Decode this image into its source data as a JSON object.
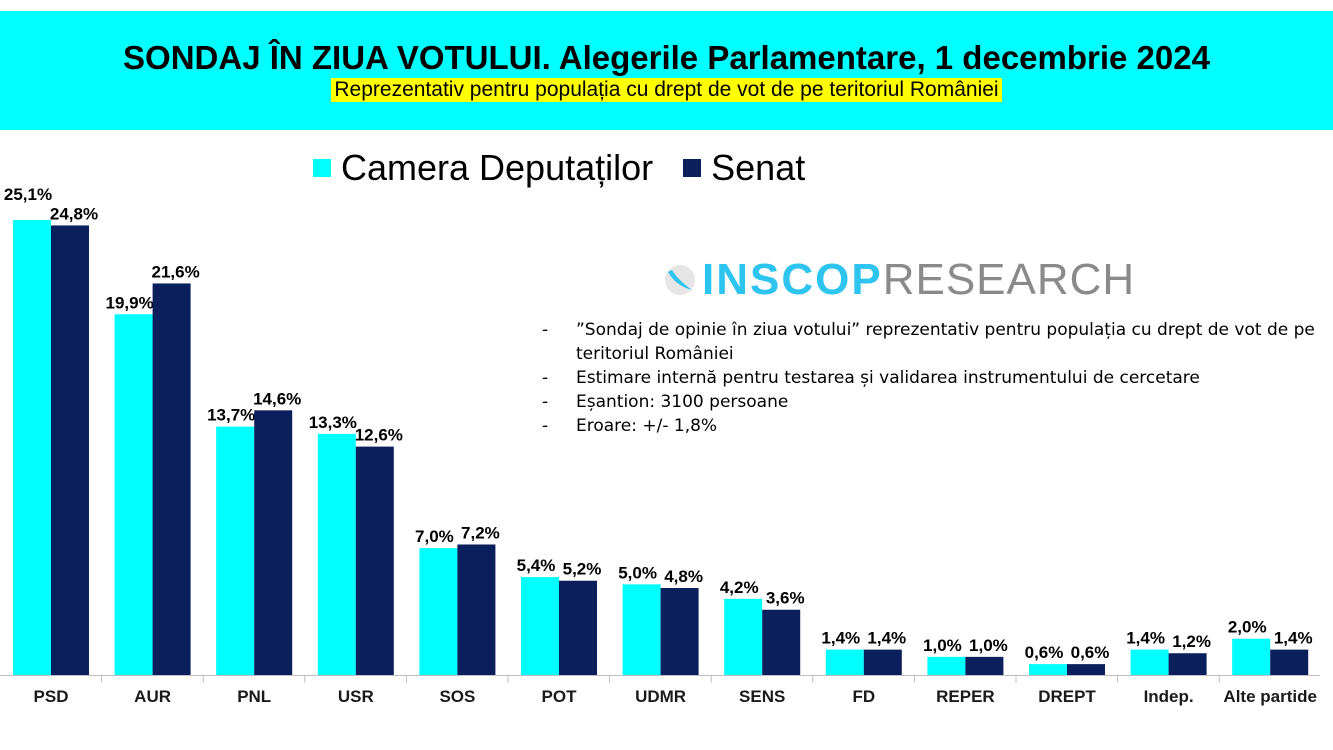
{
  "header": {
    "title": "SONDAJ ÎN ZIUA VOTULUI. Alegerile Parlamentare, 1 decembrie 2024",
    "subtitle": "Reprezentativ pentru populația cu drept de vot de pe teritoriul României"
  },
  "logo": {
    "strong": "INSCOP",
    "light": "RESEARCH",
    "icon": "swoosh-icon"
  },
  "notes": [
    "”Sondaj de opinie în ziua votului” reprezentativ pentru populația cu drept de vot de pe teritoriul României",
    "Estimare internă pentru testarea și validarea instrumentului de cercetare",
    "Eșantion: 3100 persoane",
    "Eroare: +/- 1,8%"
  ],
  "colors": {
    "camera": "#00ffff",
    "senat": "#0a1f5c",
    "header_bg": "#00ffff",
    "highlight": "#ffff00"
  },
  "chart_data": {
    "type": "bar",
    "title": "",
    "xlabel": "",
    "ylabel": "",
    "ylim": [
      0,
      26
    ],
    "grid": false,
    "legend": "top",
    "categories": [
      "PSD",
      "AUR",
      "PNL",
      "USR",
      "SOS",
      "POT",
      "UDMR",
      "SENS",
      "FD",
      "REPER",
      "DREPT",
      "Indep.",
      "Alte partide"
    ],
    "series": [
      {
        "name": "Camera Deputaților",
        "values": [
          25.1,
          19.9,
          13.7,
          13.3,
          7.0,
          5.4,
          5.0,
          4.2,
          1.4,
          1.0,
          0.6,
          1.4,
          2.0
        ],
        "labels": [
          "25,1%",
          "19,9%",
          "13,7%",
          "13,3%",
          "7,0%",
          "5,4%",
          "5,0%",
          "4,2%",
          "1,4%",
          "1,0%",
          "0,6%",
          "1,4%",
          "2,0%"
        ]
      },
      {
        "name": "Senat",
        "values": [
          24.8,
          21.6,
          14.6,
          12.6,
          7.2,
          5.2,
          4.8,
          3.6,
          1.4,
          1.0,
          0.6,
          1.2,
          1.4
        ],
        "labels": [
          "24,8%",
          "21,6%",
          "14,6%",
          "12,6%",
          "7,2%",
          "5,2%",
          "4,8%",
          "3,6%",
          "1,4%",
          "1,0%",
          "0,6%",
          "1,2%",
          "1,4%"
        ]
      }
    ]
  }
}
